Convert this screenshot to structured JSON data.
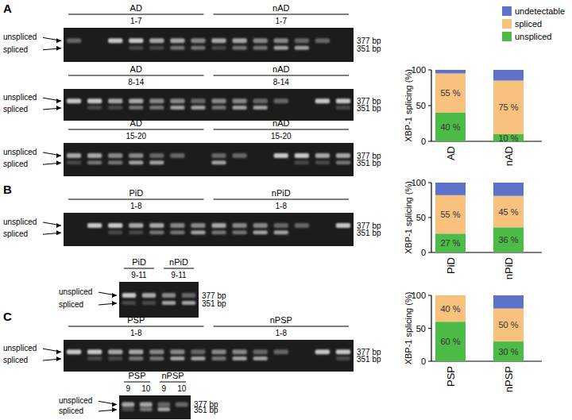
{
  "panels": [
    {
      "letter": "A",
      "gels": [
        {
          "groups": [
            {
              "label": "AD",
              "sub": "1-7"
            },
            {
              "label": "nAD",
              "sub": "1-7"
            }
          ],
          "band_labels": [
            "unspliced",
            "spliced"
          ],
          "sizes": [
            "377 bp",
            "351 bp"
          ]
        },
        {
          "groups": [
            {
              "label": "AD",
              "sub": "8-14"
            },
            {
              "label": "nAD",
              "sub": "8-14"
            }
          ],
          "band_labels": [
            "unspliced",
            "spliced"
          ],
          "sizes": [
            "377 bp",
            "351 bp"
          ]
        },
        {
          "groups": [
            {
              "label": "AD",
              "sub": "15-20"
            },
            {
              "label": "nAD",
              "sub": "15-20"
            }
          ],
          "band_labels": [
            "unspliced",
            "spliced"
          ],
          "sizes": [
            "377 bp",
            "351 bp"
          ]
        }
      ]
    },
    {
      "letter": "B",
      "gels": [
        {
          "groups": [
            {
              "label": "PiD",
              "sub": "1-8"
            },
            {
              "label": "nPiD",
              "sub": "1-8"
            }
          ],
          "band_labels": [
            "unspliced",
            "spliced"
          ],
          "sizes": [
            "377 bp",
            "351 bp"
          ]
        },
        {
          "groups": [
            {
              "label": "PiD",
              "sub": "9-11"
            },
            {
              "label": "nPiD",
              "sub": "9-11"
            }
          ],
          "band_labels": [
            "unspliced",
            "spliced"
          ],
          "sizes": [
            "377 bp",
            "351 bp"
          ]
        }
      ]
    },
    {
      "letter": "C",
      "gels": [
        {
          "groups": [
            {
              "label": "PSP",
              "sub": "1-8"
            },
            {
              "label": "nPSP",
              "sub": "1-8"
            }
          ],
          "band_labels": [
            "unspliced",
            "spliced"
          ],
          "sizes": [
            "377 bp",
            "351 bp"
          ]
        },
        {
          "groups": [
            {
              "label": "PSP",
              "sub": [
                "9",
                "10"
              ]
            },
            {
              "label": "nPSP",
              "sub": [
                "9",
                "10"
              ]
            }
          ],
          "band_labels": [
            "unspliced",
            "spliced"
          ],
          "sizes": [
            "377 bp",
            "351 bp"
          ]
        }
      ]
    }
  ],
  "chart_data": [
    {
      "type": "bar",
      "stacked": true,
      "legend": "top-right",
      "y_label": "XBP-1 splicing (%)",
      "categories": [
        "AD",
        "nAD"
      ],
      "ylim": [
        0,
        100
      ],
      "yticks": [
        0,
        50,
        100
      ],
      "series": [
        {
          "name": "unspliced",
          "color": "#4cbb47",
          "values": [
            40,
            10
          ],
          "value_labels": [
            "40 %",
            "10 %"
          ]
        },
        {
          "name": "spliced",
          "color": "#f8c27e",
          "values": [
            55,
            75
          ],
          "value_labels": [
            "55 %",
            "75 %"
          ]
        },
        {
          "name": "undetectable",
          "color": "#5e72c8",
          "values": [
            5,
            15
          ]
        }
      ]
    },
    {
      "type": "bar",
      "stacked": true,
      "y_label": "XBP-1 splicing (%)",
      "categories": [
        "PiD",
        "nPiD"
      ],
      "ylim": [
        0,
        100
      ],
      "yticks": [
        0,
        50,
        100
      ],
      "series": [
        {
          "color": "#4cbb47",
          "values": [
            27,
            36
          ],
          "value_labels": [
            "27 %",
            "36 %"
          ]
        },
        {
          "color": "#f8c27e",
          "values": [
            55,
            45
          ],
          "value_labels": [
            "55 %",
            "45 %"
          ]
        },
        {
          "color": "#5e72c8",
          "values": [
            18,
            19
          ]
        }
      ]
    },
    {
      "type": "bar",
      "stacked": true,
      "y_label": "XBP-1 splicing (%)",
      "categories": [
        "PSP",
        "nPSP"
      ],
      "ylim": [
        0,
        100
      ],
      "yticks": [
        0,
        50,
        100
      ],
      "series": [
        {
          "color": "#4cbb47",
          "values": [
            60,
            30
          ],
          "value_labels": [
            "60 %",
            "30 %"
          ]
        },
        {
          "color": "#f8c27e",
          "values": [
            40,
            50
          ],
          "value_labels": [
            "40 %",
            "50 %"
          ]
        },
        {
          "color": "#5e72c8",
          "values": [
            0,
            20
          ]
        }
      ]
    }
  ]
}
